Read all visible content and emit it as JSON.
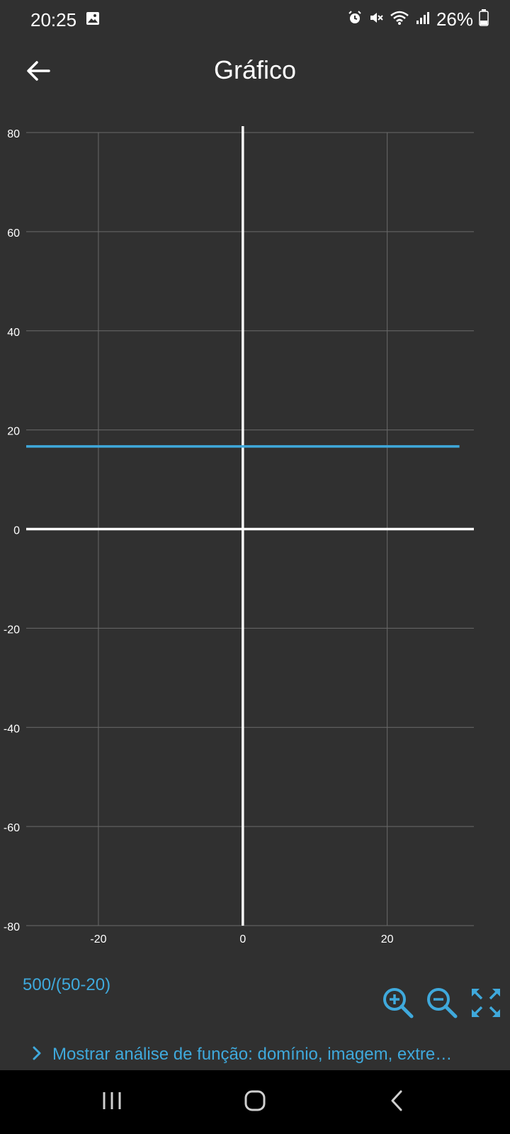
{
  "status_bar": {
    "time": "20:25",
    "battery_percent": "26%",
    "icons": [
      "gallery-icon",
      "alarm-icon",
      "mute-icon",
      "wifi-icon",
      "signal-icon",
      "battery-icon"
    ]
  },
  "app_bar": {
    "back_icon": "arrow-left-icon",
    "title": "Gráfico"
  },
  "chart_data": {
    "type": "line",
    "series": [
      {
        "name": "500/(50-20)",
        "x": [
          -30,
          30
        ],
        "y": [
          16.6667,
          16.6667
        ],
        "color": "#3fa9dc"
      }
    ],
    "xlim": [
      -30,
      32
    ],
    "ylim": [
      -80,
      82
    ],
    "x_ticks": [
      -20,
      0,
      20
    ],
    "x_tick_labels": [
      "-20",
      "0",
      "20"
    ],
    "y_ticks": [
      80,
      60,
      40,
      20,
      0,
      -20,
      -40,
      -60,
      -80
    ],
    "y_tick_labels": [
      "80",
      "60",
      "40",
      "20",
      "0",
      "-20",
      "-40",
      "-60",
      "-80"
    ],
    "grid": true,
    "axis_color": "#ffffff",
    "grid_color": "#6a6a6a"
  },
  "function_expression": "500/(50-20)",
  "controls": {
    "zoom_in_icon": "zoom-in-icon",
    "zoom_out_icon": "zoom-out-icon",
    "fullscreen_icon": "fullscreen-icon"
  },
  "analysis_toggle": {
    "icon": "chevron-right-icon",
    "label": "Mostrar análise de função: domínio, imagem, extre…"
  },
  "nav_bar": {
    "icons": [
      "recent-apps-icon",
      "home-icon",
      "nav-back-icon"
    ]
  },
  "accent_color": "#3fa9dc"
}
